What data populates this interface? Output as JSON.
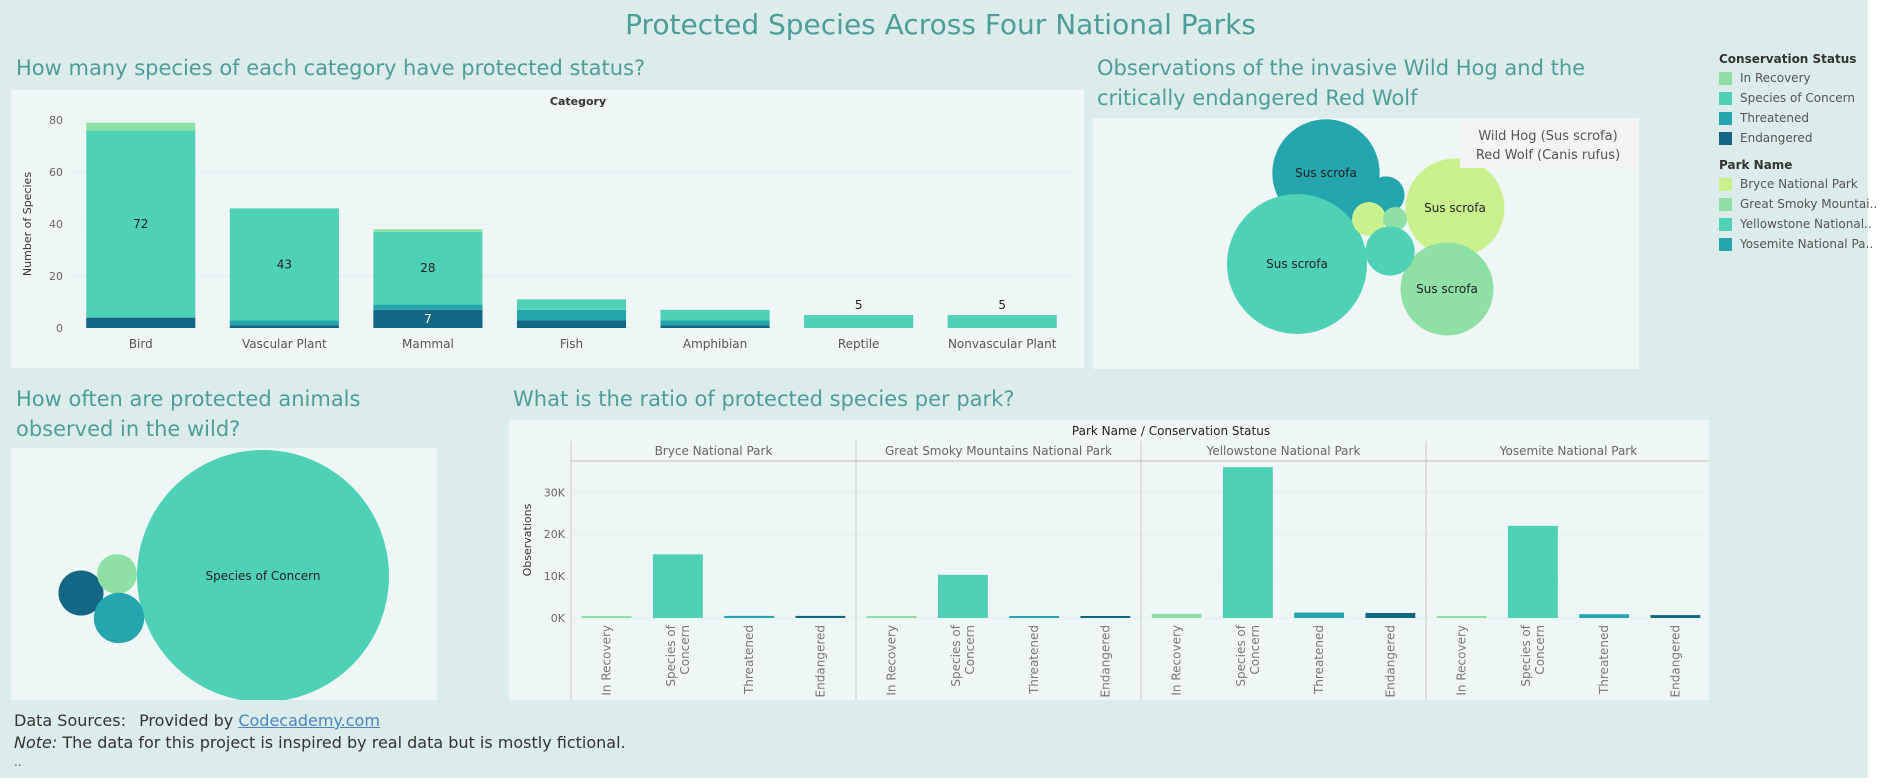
{
  "title": "Protected Species Across Four National Parks",
  "questions": {
    "category": "How many species of each category have protected status?",
    "hog_wolf": "Observations of the invasive Wild Hog and the critically endangered Red Wolf",
    "observed": "How often are protected animals observed in the wild?",
    "ratio": "What is the ratio of protected species per park?"
  },
  "colors": {
    "in_recovery": "#8fe0a4",
    "species_of_concern": "#4fd1b6",
    "threatened": "#25a5ad",
    "endangered": "#136784",
    "bryce": "#c9f18e",
    "great_smoky": "#8fe0a4",
    "yellowstone": "#4fd1b6",
    "yosemite": "#25a5ad"
  },
  "legend": {
    "status_title": "Conservation Status",
    "status_items": [
      "In Recovery",
      "Species of Concern",
      "Threatened",
      "Endangered"
    ],
    "park_title": "Park Name",
    "park_items": [
      "Bryce National Park",
      "Great Smoky Mountai..",
      "Yellowstone National..",
      "Yosemite National Pa.."
    ]
  },
  "sources": {
    "label": "Data Sources:",
    "provided_by": "Provided by",
    "link": "Codecademy.com",
    "note_label": "Note:",
    "note_text": "The data for this project is inspired by real data but is mostly fictional.",
    "dots": ".."
  },
  "hog_wolf_legend": [
    "Wild Hog (Sus scrofa)",
    "Red Wolf (Canis rufus)"
  ],
  "chart_data": [
    {
      "type": "bar",
      "stacked": true,
      "title": "Category",
      "ylabel": "Number of Species",
      "ylim": [
        0,
        80
      ],
      "yticks": [
        0,
        20,
        40,
        60,
        80
      ],
      "categories": [
        "Bird",
        "Vascular Plant",
        "Mammal",
        "Fish",
        "Amphibian",
        "Reptile",
        "Nonvascular Plant"
      ],
      "series": [
        {
          "name": "Endangered",
          "values": [
            4,
            1,
            7,
            3,
            1,
            0,
            0
          ]
        },
        {
          "name": "Threatened",
          "values": [
            0,
            2,
            2,
            4,
            2,
            0,
            0
          ]
        },
        {
          "name": "Species of Concern",
          "values": [
            72,
            43,
            28,
            4,
            4,
            5,
            5
          ]
        },
        {
          "name": "In Recovery",
          "values": [
            3,
            0,
            1,
            0,
            0,
            0,
            0
          ]
        }
      ],
      "data_labels": [
        {
          "category": "Bird",
          "series": "Species of Concern",
          "text": "72"
        },
        {
          "category": "Vascular Plant",
          "series": "Species of Concern",
          "text": "43"
        },
        {
          "category": "Mammal",
          "series": "Species of Concern",
          "text": "28"
        },
        {
          "category": "Mammal",
          "series": "Endangered",
          "text": "7"
        },
        {
          "category": "Reptile",
          "series": "Species of Concern",
          "text": "5",
          "above": true
        },
        {
          "category": "Nonvascular Plant",
          "series": "Species of Concern",
          "text": "5",
          "above": true
        }
      ]
    },
    {
      "type": "bubble",
      "title": "Observations of the invasive Wild Hog and the critically endangered Red Wolf",
      "bubbles": [
        {
          "park": "Yosemite National Park",
          "label": "Sus scrofa",
          "size": 100
        },
        {
          "park": "Yellowstone National Park",
          "label": "Sus scrofa",
          "size": 170
        },
        {
          "park": "Bryce National Park",
          "label": "Sus scrofa",
          "size": 85
        },
        {
          "park": "Great Smoky Mountains National Park",
          "label": "Sus scrofa",
          "size": 75
        },
        {
          "park": "Yosemite National Park",
          "label": "",
          "size": 12
        },
        {
          "park": "Bryce National Park",
          "label": "",
          "size": 10
        },
        {
          "park": "Great Smoky Mountains National Park",
          "label": "",
          "size": 5
        },
        {
          "park": "Yellowstone National Park",
          "label": "",
          "size": 21
        }
      ]
    },
    {
      "type": "bubble",
      "title": "How often are protected animals observed in the wild?",
      "bubbles": [
        {
          "status": "Species of Concern",
          "label": "Species of Concern",
          "size": 100
        },
        {
          "status": "Endangered",
          "label": "",
          "size": 3.2
        },
        {
          "status": "In Recovery",
          "label": "",
          "size": 2.5
        },
        {
          "status": "Threatened",
          "label": "",
          "size": 4.0
        }
      ]
    },
    {
      "type": "bar",
      "title": "Park Name / Conservation Status",
      "ylabel": "Observations",
      "ylim": [
        0,
        37000
      ],
      "yticks": [
        0,
        10000,
        20000,
        30000
      ],
      "ytick_labels": [
        "0K",
        "10K",
        "20K",
        "30K"
      ],
      "statuses": [
        "In Recovery",
        "Species of Concern",
        "Threatened",
        "Endangered"
      ],
      "status_tick_labels": [
        [
          "In Recovery"
        ],
        [
          "Species of",
          "Concern"
        ],
        [
          "Threatened"
        ],
        [
          "Endangered"
        ]
      ],
      "parks": [
        {
          "name": "Bryce National Park",
          "values": [
            400,
            15200,
            500,
            500
          ]
        },
        {
          "name": "Great Smoky Mountains National Park",
          "values": [
            300,
            10300,
            450,
            350
          ]
        },
        {
          "name": "Yellowstone National Park",
          "values": [
            1000,
            36000,
            1300,
            1200
          ]
        },
        {
          "name": "Yosemite National Park",
          "values": [
            500,
            22000,
            900,
            700
          ]
        }
      ]
    }
  ]
}
